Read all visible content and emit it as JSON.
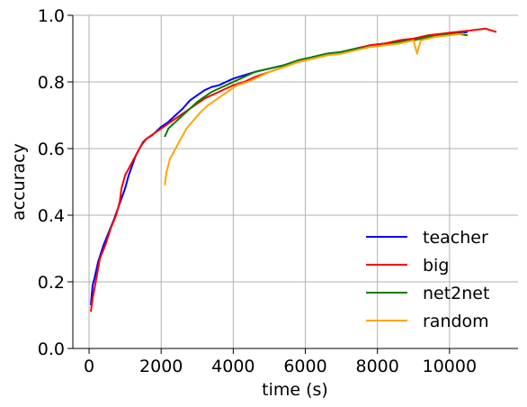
{
  "chart_data": {
    "type": "line",
    "title": "",
    "xlabel": "time (s)",
    "ylabel": "accuracy",
    "xlim": [
      -450,
      11900
    ],
    "ylim": [
      0.0,
      1.0
    ],
    "xticks": [
      0,
      2000,
      4000,
      6000,
      8000,
      10000
    ],
    "yticks": [
      0.0,
      0.2,
      0.4,
      0.6,
      0.8,
      1.0
    ],
    "xtick_labels": [
      "0",
      "2000",
      "4000",
      "6000",
      "8000",
      "10000"
    ],
    "ytick_labels": [
      "0.0",
      "0.2",
      "0.4",
      "0.6",
      "0.8",
      "1.0"
    ],
    "grid": true,
    "legend_position": "lower-right",
    "series": [
      {
        "name": "teacher",
        "color": "#0000ff",
        "points": [
          [
            50,
            0.13
          ],
          [
            100,
            0.19
          ],
          [
            150,
            0.21
          ],
          [
            250,
            0.26
          ],
          [
            400,
            0.31
          ],
          [
            550,
            0.35
          ],
          [
            700,
            0.39
          ],
          [
            800,
            0.42
          ],
          [
            900,
            0.45
          ],
          [
            1000,
            0.48
          ],
          [
            1100,
            0.52
          ],
          [
            1200,
            0.55
          ],
          [
            1300,
            0.58
          ],
          [
            1400,
            0.6
          ],
          [
            1500,
            0.62
          ],
          [
            1600,
            0.63
          ],
          [
            1750,
            0.64
          ],
          [
            1900,
            0.655
          ],
          [
            2000,
            0.665
          ],
          [
            2200,
            0.68
          ],
          [
            2400,
            0.7
          ],
          [
            2600,
            0.72
          ],
          [
            2800,
            0.745
          ],
          [
            3000,
            0.76
          ],
          [
            3200,
            0.775
          ],
          [
            3400,
            0.785
          ],
          [
            3600,
            0.79
          ],
          [
            3800,
            0.8
          ],
          [
            4000,
            0.81
          ],
          [
            4300,
            0.82
          ],
          [
            4600,
            0.83
          ],
          [
            5000,
            0.84
          ],
          [
            5400,
            0.85
          ],
          [
            5800,
            0.86
          ],
          [
            6200,
            0.875
          ],
          [
            6600,
            0.885
          ],
          [
            7000,
            0.89
          ],
          [
            7400,
            0.9
          ],
          [
            7800,
            0.91
          ],
          [
            8200,
            0.915
          ],
          [
            8600,
            0.92
          ],
          [
            9000,
            0.925
          ],
          [
            9400,
            0.935
          ],
          [
            9800,
            0.94
          ],
          [
            10200,
            0.945
          ],
          [
            10500,
            0.95
          ]
        ]
      },
      {
        "name": "big",
        "color": "#ff0000",
        "points": [
          [
            50,
            0.11
          ],
          [
            100,
            0.15
          ],
          [
            200,
            0.21
          ],
          [
            300,
            0.27
          ],
          [
            450,
            0.31
          ],
          [
            600,
            0.36
          ],
          [
            750,
            0.4
          ],
          [
            850,
            0.44
          ],
          [
            900,
            0.48
          ],
          [
            1000,
            0.52
          ],
          [
            1100,
            0.54
          ],
          [
            1200,
            0.56
          ],
          [
            1300,
            0.58
          ],
          [
            1450,
            0.61
          ],
          [
            1600,
            0.63
          ],
          [
            1800,
            0.645
          ],
          [
            2000,
            0.66
          ],
          [
            2200,
            0.675
          ],
          [
            2400,
            0.69
          ],
          [
            2600,
            0.705
          ],
          [
            2800,
            0.72
          ],
          [
            3000,
            0.735
          ],
          [
            3200,
            0.75
          ],
          [
            3400,
            0.76
          ],
          [
            3600,
            0.77
          ],
          [
            3800,
            0.78
          ],
          [
            4000,
            0.79
          ],
          [
            4300,
            0.8
          ],
          [
            4600,
            0.815
          ],
          [
            5000,
            0.83
          ],
          [
            5400,
            0.845
          ],
          [
            5800,
            0.86
          ],
          [
            6200,
            0.87
          ],
          [
            6600,
            0.88
          ],
          [
            7000,
            0.89
          ],
          [
            7400,
            0.9
          ],
          [
            7800,
            0.91
          ],
          [
            8200,
            0.915
          ],
          [
            8600,
            0.925
          ],
          [
            9000,
            0.93
          ],
          [
            9400,
            0.94
          ],
          [
            9800,
            0.945
          ],
          [
            10200,
            0.95
          ],
          [
            10600,
            0.955
          ],
          [
            11000,
            0.96
          ],
          [
            11300,
            0.95
          ]
        ]
      },
      {
        "name": "net2net",
        "color": "#008000",
        "points": [
          [
            2100,
            0.635
          ],
          [
            2200,
            0.66
          ],
          [
            2400,
            0.68
          ],
          [
            2600,
            0.7
          ],
          [
            2800,
            0.72
          ],
          [
            3000,
            0.74
          ],
          [
            3200,
            0.755
          ],
          [
            3400,
            0.77
          ],
          [
            3600,
            0.78
          ],
          [
            3800,
            0.79
          ],
          [
            4000,
            0.8
          ],
          [
            4300,
            0.815
          ],
          [
            4600,
            0.83
          ],
          [
            5000,
            0.84
          ],
          [
            5400,
            0.85
          ],
          [
            5800,
            0.865
          ],
          [
            6200,
            0.875
          ],
          [
            6600,
            0.885
          ],
          [
            7000,
            0.89
          ],
          [
            7400,
            0.9
          ],
          [
            7800,
            0.905
          ],
          [
            8200,
            0.91
          ],
          [
            8600,
            0.92
          ],
          [
            9000,
            0.925
          ],
          [
            9400,
            0.935
          ],
          [
            9800,
            0.94
          ],
          [
            10200,
            0.945
          ],
          [
            10500,
            0.94
          ]
        ]
      },
      {
        "name": "random",
        "color": "#ffa500",
        "points": [
          [
            2100,
            0.49
          ],
          [
            2150,
            0.53
          ],
          [
            2250,
            0.57
          ],
          [
            2400,
            0.6
          ],
          [
            2550,
            0.63
          ],
          [
            2700,
            0.66
          ],
          [
            2900,
            0.685
          ],
          [
            3100,
            0.71
          ],
          [
            3300,
            0.73
          ],
          [
            3500,
            0.745
          ],
          [
            3700,
            0.76
          ],
          [
            3900,
            0.775
          ],
          [
            4100,
            0.79
          ],
          [
            4400,
            0.8
          ],
          [
            4700,
            0.815
          ],
          [
            5000,
            0.83
          ],
          [
            5400,
            0.845
          ],
          [
            5800,
            0.86
          ],
          [
            6200,
            0.87
          ],
          [
            6600,
            0.88
          ],
          [
            7000,
            0.885
          ],
          [
            7400,
            0.895
          ],
          [
            7800,
            0.905
          ],
          [
            8200,
            0.91
          ],
          [
            8600,
            0.915
          ],
          [
            9000,
            0.925
          ],
          [
            9100,
            0.885
          ],
          [
            9200,
            0.925
          ],
          [
            9600,
            0.935
          ],
          [
            10000,
            0.94
          ],
          [
            10400,
            0.945
          ]
        ]
      }
    ]
  }
}
